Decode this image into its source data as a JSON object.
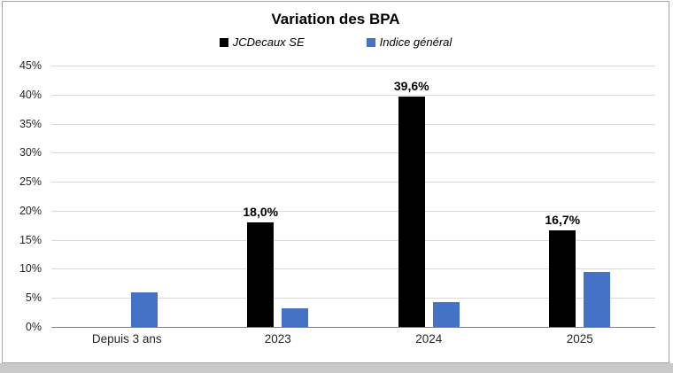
{
  "chart_data": {
    "type": "bar",
    "title": "Variation des BPA",
    "categories": [
      "Depuis 3 ans",
      "2023",
      "2024",
      "2025"
    ],
    "series": [
      {
        "name": "JCDecaux SE",
        "color": "#000000",
        "values": [
          0,
          18.0,
          39.6,
          16.7
        ],
        "labels": [
          "",
          "18,0%",
          "39,6%",
          "16,7%"
        ]
      },
      {
        "name": "Indice général",
        "color": "#4472C4",
        "values": [
          6.0,
          3.2,
          4.2,
          9.4
        ],
        "labels": [
          "",
          "",
          "",
          ""
        ]
      }
    ],
    "ylim": [
      0,
      45
    ],
    "ytick_step": 5,
    "ytick_labels": [
      "0%",
      "5%",
      "10%",
      "15%",
      "20%",
      "25%",
      "30%",
      "35%",
      "40%",
      "45%"
    ],
    "ytick_format": "percent",
    "grid": true,
    "legend_position": "top"
  }
}
